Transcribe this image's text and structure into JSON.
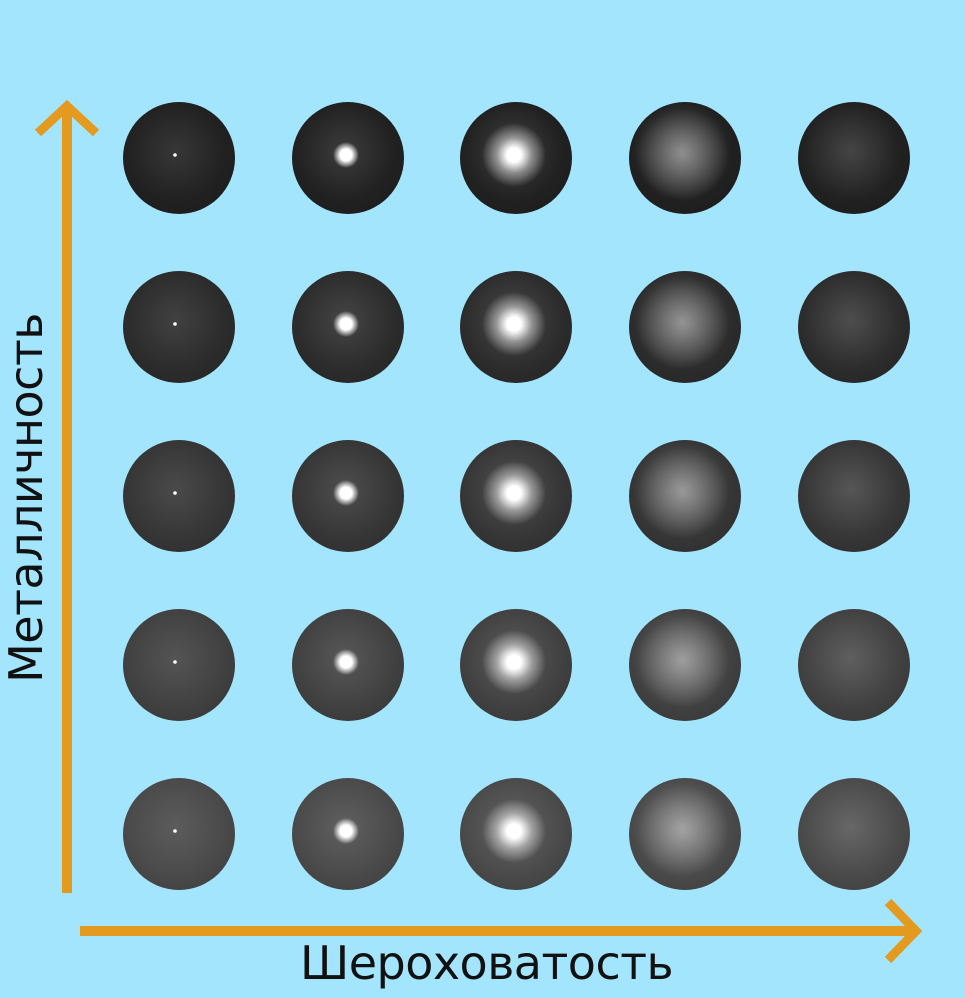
{
  "axes": {
    "x_label": "Шероховатость",
    "y_label": "Металличность",
    "arrow_color": "#e39a1f"
  },
  "background_color": "#a2e5fd",
  "grid": {
    "rows": 5,
    "cols": 5,
    "base_gray_by_row_top_to_bottom": [
      "#212121",
      "#2c2c2c",
      "#363636",
      "#414141",
      "#4a4a4a"
    ],
    "highlight_gray_by_col": [
      "none",
      "small-sharp",
      "medium",
      "broad-soft",
      "diffuse"
    ]
  }
}
